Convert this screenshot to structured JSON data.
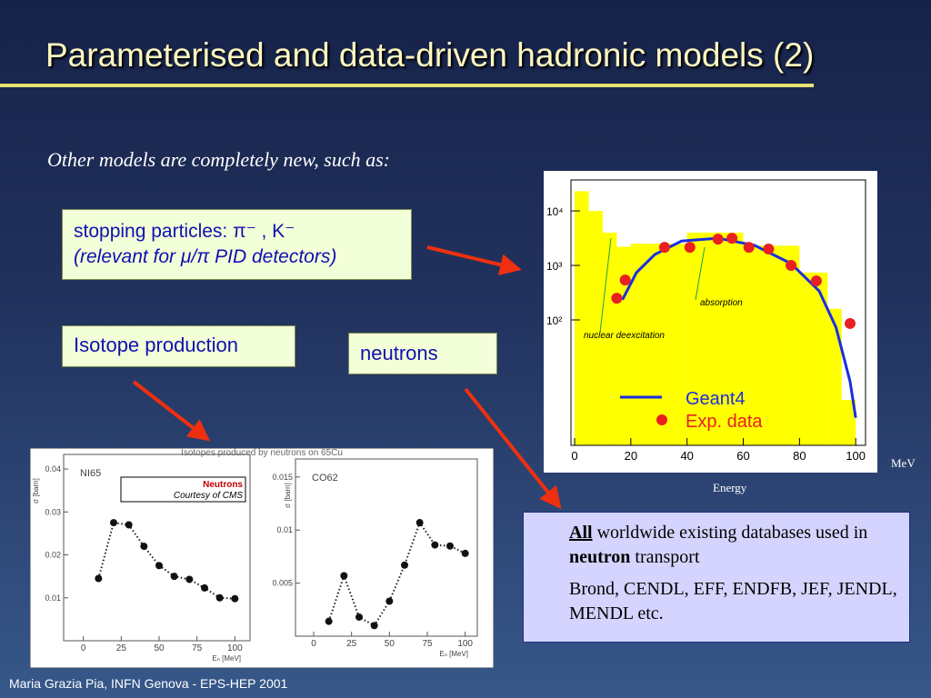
{
  "header": {
    "title": "Parameterised and data-driven hadronic models (2)"
  },
  "intro": "Other models are completely new, such as:",
  "stopping": {
    "label": "stopping particles:",
    "particles": "π⁻ , K⁻",
    "note": "(relevant for μ/π PID detectors)"
  },
  "isotope": "Isotope production",
  "neutrons": "neutrons",
  "databases": {
    "emphasis": "All",
    "text1": "worldwide existing databases used in",
    "bold": "neutron",
    "text2": "transport",
    "list": "Brond, CENDL, EFF, ENDFB, JEF, JENDL, MENDL etc."
  },
  "footer": "Maria Grazia Pia, INFN Genova - EPS-HEP 2001",
  "energy_plot": {
    "type": "line",
    "log_y": true,
    "xlim": [
      -1.3,
      103.5
    ],
    "xticks": [
      0,
      20,
      40,
      60,
      80,
      100
    ],
    "ylim": [
      0.5,
      37000
    ],
    "yticks": [
      {
        "value": 100,
        "label": "10²"
      },
      {
        "value": 1000,
        "label": "10³"
      },
      {
        "value": 10000,
        "label": "10⁴"
      }
    ],
    "x_unit": "MeV",
    "xlabel": "Energy",
    "annotations": [
      "absorption",
      "nuclear deexcitation"
    ],
    "histogram": {
      "color": "#ffff00",
      "bins": [
        0,
        5,
        10,
        15,
        20,
        40,
        60,
        80,
        90,
        95,
        100
      ],
      "counts": [
        23000,
        10000,
        4000,
        2200,
        2500,
        4000,
        2300,
        740,
        160,
        3.4
      ]
    },
    "series": [
      {
        "name": "Geant4",
        "color": "#1a2ee0",
        "x": [
          17,
          22,
          28.5,
          38,
          51,
          64,
          77,
          87,
          93,
          98,
          100
        ],
        "values": [
          234,
          740,
          1585,
          2800,
          3160,
          2340,
          1080,
          340,
          73,
          7.4,
          1.6
        ]
      },
      {
        "name": "Exp. data",
        "color": "#e82020",
        "x": [
          15,
          18,
          32,
          41,
          51,
          56,
          62,
          69,
          77,
          86,
          98
        ],
        "values": [
          250,
          540,
          2150,
          2150,
          3040,
          3160,
          2150,
          2000,
          1000,
          520,
          86
        ]
      }
    ]
  },
  "isotope_plots": {
    "title": "Isotopes produced by neutrons on 65Cu",
    "note": {
      "title": "Neutrons",
      "credit": "Courtesy of CMS"
    },
    "xlabel": "Eₙ [MeV]",
    "ylabel": "σ [barn]",
    "panels": [
      {
        "type": "line",
        "name": "NI65",
        "xlim": [
          -13,
          110
        ],
        "xticks": [
          0,
          25,
          50,
          75,
          100
        ],
        "ylim": [
          0,
          0.0434
        ],
        "yticks": [
          0.01,
          0.02,
          0.03,
          0.04
        ],
        "x": [
          10,
          20,
          30,
          40,
          50,
          60,
          70,
          80,
          90,
          100
        ],
        "values": [
          0.0145,
          0.0275,
          0.027,
          0.022,
          0.0175,
          0.015,
          0.0143,
          0.0123,
          0.01,
          0.0098
        ]
      },
      {
        "type": "line",
        "name": "CO62",
        "xlim": [
          -12,
          108
        ],
        "xticks": [
          0,
          25,
          50,
          75,
          100
        ],
        "ylim": [
          0,
          0.0167
        ],
        "yticks": [
          0.005,
          0.01,
          0.015
        ],
        "x": [
          10,
          20,
          30,
          40,
          50,
          60,
          70,
          80,
          90,
          100
        ],
        "values": [
          0.0014,
          0.0057,
          0.0018,
          0.001,
          0.0033,
          0.0067,
          0.0107,
          0.0086,
          0.0085,
          0.0078
        ]
      }
    ]
  }
}
